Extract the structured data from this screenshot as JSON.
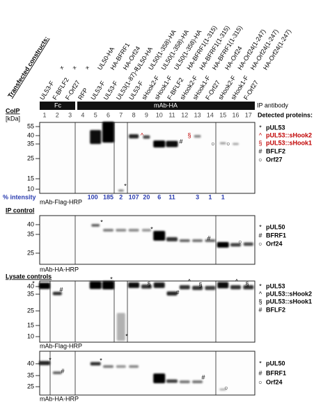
{
  "header": {
    "transfected_label": "Transfected constructs:",
    "row_ha": [
      "×",
      "×",
      "×",
      "UL50-HA",
      "HA-BFRF1",
      "HA-Orf24",
      "UL50-HA",
      "UL50(1-358)-HA",
      "UL50(1-358)-HA",
      "UL50(1-358)-HA",
      "HA-BFRF1(1-315)",
      "HA-BFRF1(1-315)",
      "HA-BFRF1(1-315)",
      "HA-Orf24",
      "HA-Orf24(1-247)",
      "HA-Orf24(1-247)",
      "HA-Orf24(1-247)"
    ],
    "row_flag": [
      "UL53-F",
      "F-BFLF2",
      "F-Orf27",
      "RFP",
      "UL53-F",
      "UL53-F",
      "UL53(1-87)-F",
      "UL53-F",
      "sHook2-F",
      "sHook1-F",
      "F-BFLF2",
      "sHook2-F",
      "sHook1-F",
      "F-Orf27",
      "sHook2-F",
      "sHook1-F",
      "F-Orf27"
    ]
  },
  "ip_bar": {
    "fc": "Fc",
    "mab": "mAb-HA",
    "label": "IP antibody"
  },
  "lanes": [
    "1",
    "2",
    "3",
    "4",
    "5",
    "6",
    "7",
    "8",
    "9",
    "10",
    "11",
    "12",
    "13",
    "14",
    "15",
    "16",
    "17"
  ],
  "detected_title": "Detected proteins:",
  "coip": {
    "title": "CoIP",
    "unit": "[kDa]",
    "markers": [
      "55",
      "40",
      "35",
      "25",
      "15",
      "10"
    ],
    "legend": [
      {
        "symbol": "*",
        "text": "pUL53",
        "color": "#000000"
      },
      {
        "symbol": "^",
        "text": "pUL53::sHook2",
        "color": "#c00000"
      },
      {
        "symbol": "§",
        "text": "pUL53::sHook1",
        "color": "#c00000"
      },
      {
        "symbol": "#",
        "text": "BFLF2",
        "color": "#000000"
      },
      {
        "symbol": "○",
        "text": "Orf27",
        "color": "#000000"
      }
    ],
    "annotations": [
      {
        "text": "*",
        "color": "#000000"
      },
      {
        "text": "*",
        "color": "#000000"
      },
      {
        "text": "^",
        "color": "#c00000"
      },
      {
        "text": "§",
        "color": "#c00000"
      },
      {
        "text": "#",
        "color": "#000000"
      },
      {
        "text": "○",
        "color": "#000000"
      },
      {
        "text": "○",
        "color": "#000000"
      }
    ],
    "intensity_label": "% intensity",
    "intensities": [
      "100",
      "185",
      "2",
      "107",
      "20",
      "6",
      "11",
      "3",
      "1",
      "1"
    ],
    "antibody": "mAb-Flag-HRP"
  },
  "ip_control": {
    "title": "IP control",
    "markers": [
      "40",
      "35",
      "25"
    ],
    "legend": [
      {
        "symbol": "*",
        "text": "pUL50"
      },
      {
        "symbol": "#",
        "text": "BFRF1"
      },
      {
        "symbol": "○",
        "text": "Orf24"
      }
    ],
    "annotations": [
      "*",
      "*",
      "#",
      "○"
    ],
    "antibody": "mAb-HA-HRP"
  },
  "lysate": {
    "title": "Lysate controls",
    "markers": [
      "40",
      "35",
      "25",
      "15",
      "10"
    ],
    "legend": [
      {
        "symbol": "*",
        "text": "pUL53"
      },
      {
        "symbol": "^",
        "text": "pUL53::sHook2"
      },
      {
        "symbol": "§",
        "text": "pUL53::sHook1"
      },
      {
        "symbol": "#",
        "text": "BFLF2"
      }
    ],
    "annotations": [
      "*",
      "#",
      "*",
      "§",
      "*",
      "#",
      "^",
      "§",
      "^",
      "§"
    ],
    "antibody": "mAb-Flag-HRP"
  },
  "lysate_ha": {
    "markers": [
      "40",
      "35",
      "25"
    ],
    "legend": [
      {
        "symbol": "*",
        "text": "pUL50"
      },
      {
        "symbol": "#",
        "text": "BFRF1"
      },
      {
        "symbol": "○",
        "text": "Orf24"
      }
    ],
    "annotations": [
      "*",
      "#",
      "*",
      "#",
      "○"
    ],
    "antibody": "mAb-HA-HRP"
  }
}
